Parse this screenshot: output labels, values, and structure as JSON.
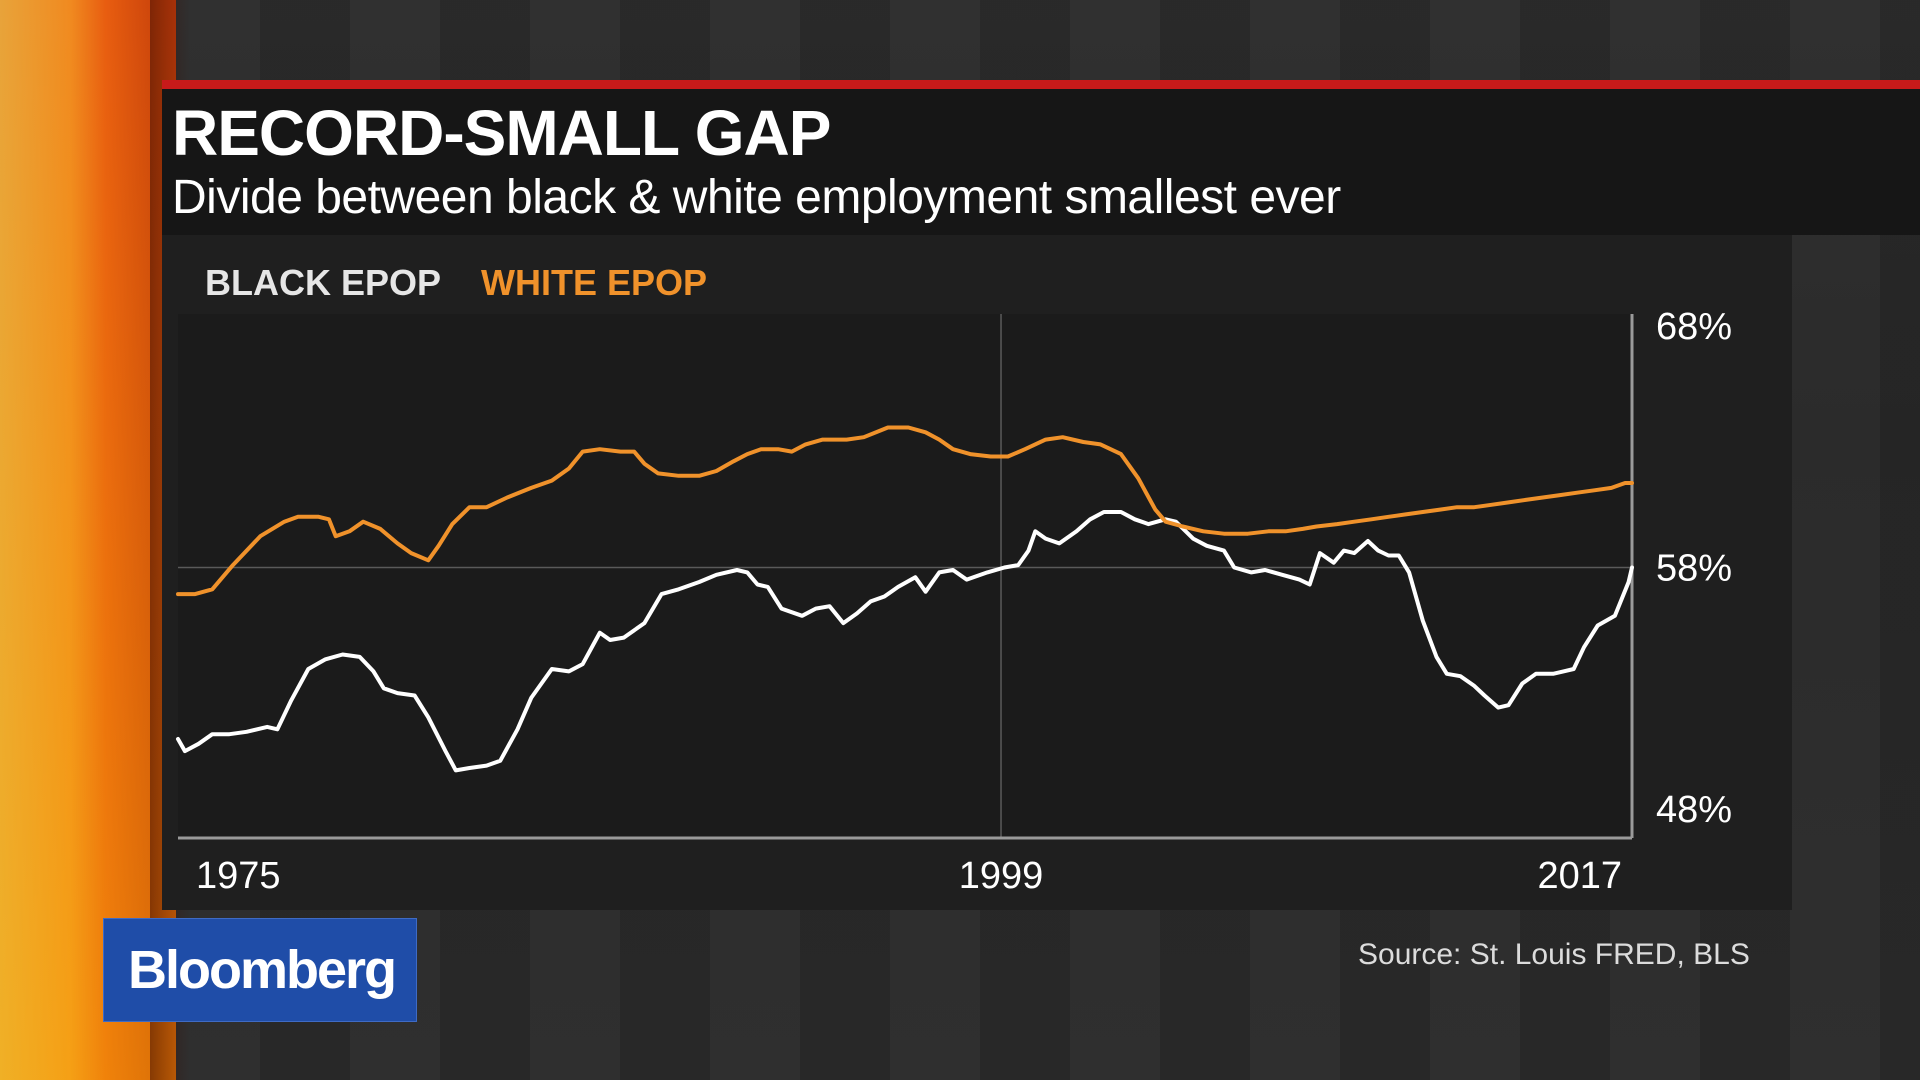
{
  "title": "RECORD-SMALL GAP",
  "subtitle": "Divide between black & white employment smallest ever",
  "source": "Source: St. Louis FRED, BLS",
  "logo": "Bloomberg",
  "colors": {
    "accent_red": "#c81a1a",
    "black_series": "#ffffff",
    "white_series": "#f0922b",
    "logo_bg": "#1f4da8"
  },
  "chart_data": {
    "type": "line",
    "title": "RECORD-SMALL GAP",
    "subtitle": "Divide between black & white employment smallest ever",
    "x_ticks": [
      "1975",
      "1999",
      "2017"
    ],
    "y_ticks": [
      "68%",
      "58%",
      "48%"
    ],
    "xlim": [
      1975,
      2017.4
    ],
    "ylim": [
      46.8,
      68.5
    ],
    "y_axis_position": "right",
    "grid": "x at 1999, y at 58%",
    "legend": {
      "placement": "top-left"
    },
    "series": [
      {
        "name": "BLACK EPOP",
        "color": "#ffffff",
        "points": [
          [
            1975.0,
            50.9
          ],
          [
            1975.2,
            50.4
          ],
          [
            1975.6,
            50.7
          ],
          [
            1976.0,
            51.1
          ],
          [
            1976.5,
            51.1
          ],
          [
            1977.0,
            51.2
          ],
          [
            1977.6,
            51.4
          ],
          [
            1977.9,
            51.3
          ],
          [
            1978.3,
            52.5
          ],
          [
            1978.8,
            53.8
          ],
          [
            1979.3,
            54.2
          ],
          [
            1979.8,
            54.4
          ],
          [
            1980.3,
            54.3
          ],
          [
            1980.7,
            53.7
          ],
          [
            1981.0,
            53.0
          ],
          [
            1981.4,
            52.8
          ],
          [
            1981.9,
            52.7
          ],
          [
            1982.3,
            51.8
          ],
          [
            1982.8,
            50.4
          ],
          [
            1983.1,
            49.6
          ],
          [
            1983.5,
            49.7
          ],
          [
            1984.0,
            49.8
          ],
          [
            1984.4,
            50.0
          ],
          [
            1984.9,
            51.3
          ],
          [
            1985.3,
            52.6
          ],
          [
            1985.9,
            53.8
          ],
          [
            1986.4,
            53.7
          ],
          [
            1986.8,
            54.0
          ],
          [
            1987.3,
            55.3
          ],
          [
            1987.6,
            55.0
          ],
          [
            1988.0,
            55.1
          ],
          [
            1988.6,
            55.7
          ],
          [
            1989.1,
            56.9
          ],
          [
            1989.6,
            57.1
          ],
          [
            1990.2,
            57.4
          ],
          [
            1990.7,
            57.7
          ],
          [
            1991.3,
            57.9
          ],
          [
            1991.6,
            57.8
          ],
          [
            1991.9,
            57.3
          ],
          [
            1992.2,
            57.2
          ],
          [
            1992.6,
            56.3
          ],
          [
            1993.2,
            56.0
          ],
          [
            1993.6,
            56.3
          ],
          [
            1994.0,
            56.4
          ],
          [
            1994.4,
            55.7
          ],
          [
            1994.8,
            56.1
          ],
          [
            1995.2,
            56.6
          ],
          [
            1995.6,
            56.8
          ],
          [
            1996.0,
            57.2
          ],
          [
            1996.5,
            57.6
          ],
          [
            1996.8,
            57.0
          ],
          [
            1997.2,
            57.8
          ],
          [
            1997.6,
            57.9
          ],
          [
            1998.0,
            57.5
          ],
          [
            1998.6,
            57.8
          ],
          [
            1999.1,
            58.0
          ],
          [
            1999.5,
            58.1
          ],
          [
            1999.8,
            58.7
          ],
          [
            2000.0,
            59.5
          ],
          [
            2000.3,
            59.2
          ],
          [
            2000.7,
            59.0
          ],
          [
            2001.2,
            59.5
          ],
          [
            2001.6,
            60.0
          ],
          [
            2002.0,
            60.3
          ],
          [
            2002.5,
            60.3
          ],
          [
            2002.9,
            60.0
          ],
          [
            2003.3,
            59.8
          ],
          [
            2003.8,
            60.0
          ],
          [
            2004.1,
            59.9
          ],
          [
            2004.6,
            59.2
          ],
          [
            2005.0,
            58.9
          ],
          [
            2005.5,
            58.7
          ],
          [
            2005.8,
            58.0
          ],
          [
            2006.3,
            57.8
          ],
          [
            2006.7,
            57.9
          ],
          [
            2007.2,
            57.7
          ],
          [
            2007.7,
            57.5
          ],
          [
            2008.0,
            57.3
          ],
          [
            2008.3,
            58.6
          ],
          [
            2008.7,
            58.2
          ],
          [
            2009.0,
            58.7
          ],
          [
            2009.3,
            58.6
          ],
          [
            2009.7,
            59.1
          ],
          [
            2010.0,
            58.7
          ],
          [
            2010.3,
            58.5
          ],
          [
            2010.6,
            58.5
          ],
          [
            2010.9,
            57.8
          ],
          [
            2011.3,
            55.8
          ],
          [
            2011.7,
            54.3
          ],
          [
            2012.0,
            53.6
          ],
          [
            2012.4,
            53.5
          ],
          [
            2012.8,
            53.1
          ],
          [
            2013.1,
            52.7
          ],
          [
            2013.5,
            52.2
          ],
          [
            2013.8,
            52.3
          ],
          [
            2014.2,
            53.2
          ],
          [
            2014.6,
            53.6
          ],
          [
            2015.1,
            53.6
          ],
          [
            2015.4,
            53.7
          ],
          [
            2015.7,
            53.8
          ],
          [
            2016.0,
            54.7
          ],
          [
            2016.4,
            55.6
          ],
          [
            2016.9,
            56.0
          ],
          [
            2017.3,
            57.4
          ],
          [
            2017.4,
            58.0
          ]
        ]
      },
      {
        "name": "WHITE EPOP",
        "color": "#f0922b",
        "points": [
          [
            1975.0,
            56.9
          ],
          [
            1975.5,
            56.9
          ],
          [
            1976.0,
            57.1
          ],
          [
            1976.6,
            58.1
          ],
          [
            1977.4,
            59.3
          ],
          [
            1978.1,
            59.9
          ],
          [
            1978.5,
            60.1
          ],
          [
            1979.1,
            60.1
          ],
          [
            1979.4,
            60.0
          ],
          [
            1979.6,
            59.3
          ],
          [
            1980.0,
            59.5
          ],
          [
            1980.4,
            59.9
          ],
          [
            1980.9,
            59.6
          ],
          [
            1981.4,
            59.0
          ],
          [
            1981.8,
            58.6
          ],
          [
            1982.3,
            58.3
          ],
          [
            1982.6,
            58.9
          ],
          [
            1983.0,
            59.8
          ],
          [
            1983.5,
            60.5
          ],
          [
            1984.0,
            60.5
          ],
          [
            1984.6,
            60.9
          ],
          [
            1985.3,
            61.3
          ],
          [
            1985.9,
            61.6
          ],
          [
            1986.4,
            62.1
          ],
          [
            1986.8,
            62.8
          ],
          [
            1987.3,
            62.9
          ],
          [
            1987.9,
            62.8
          ],
          [
            1988.3,
            62.8
          ],
          [
            1988.6,
            62.3
          ],
          [
            1989.0,
            61.9
          ],
          [
            1989.6,
            61.8
          ],
          [
            1990.2,
            61.8
          ],
          [
            1990.7,
            62.0
          ],
          [
            1991.2,
            62.4
          ],
          [
            1991.6,
            62.7
          ],
          [
            1992.0,
            62.9
          ],
          [
            1992.5,
            62.9
          ],
          [
            1992.9,
            62.8
          ],
          [
            1993.3,
            63.1
          ],
          [
            1993.8,
            63.3
          ],
          [
            1994.5,
            63.3
          ],
          [
            1995.0,
            63.4
          ],
          [
            1995.7,
            63.8
          ],
          [
            1996.3,
            63.8
          ],
          [
            1996.8,
            63.6
          ],
          [
            1997.2,
            63.3
          ],
          [
            1997.6,
            62.9
          ],
          [
            1998.1,
            62.7
          ],
          [
            1998.7,
            62.6
          ],
          [
            1999.2,
            62.6
          ],
          [
            1999.7,
            62.9
          ],
          [
            2000.3,
            63.3
          ],
          [
            2000.8,
            63.4
          ],
          [
            2001.4,
            63.2
          ],
          [
            2001.9,
            63.1
          ],
          [
            2002.5,
            62.7
          ],
          [
            2003.0,
            61.7
          ],
          [
            2003.5,
            60.4
          ],
          [
            2003.8,
            59.9
          ],
          [
            2004.3,
            59.7
          ],
          [
            2004.9,
            59.5
          ],
          [
            2005.5,
            59.4
          ],
          [
            2006.2,
            59.4
          ],
          [
            2006.8,
            59.5
          ],
          [
            2007.3,
            59.5
          ],
          [
            2007.8,
            59.6
          ],
          [
            2008.2,
            59.7
          ],
          [
            2008.8,
            59.8
          ],
          [
            2009.3,
            59.9
          ],
          [
            2009.8,
            60.0
          ],
          [
            2010.3,
            60.1
          ],
          [
            2010.8,
            60.2
          ],
          [
            2011.3,
            60.3
          ],
          [
            2011.8,
            60.4
          ],
          [
            2012.3,
            60.5
          ],
          [
            2012.8,
            60.5
          ],
          [
            2013.3,
            60.6
          ],
          [
            2013.8,
            60.7
          ],
          [
            2014.3,
            60.8
          ],
          [
            2014.8,
            60.9
          ],
          [
            2015.3,
            61.0
          ],
          [
            2015.8,
            61.1
          ],
          [
            2016.3,
            61.2
          ],
          [
            2016.8,
            61.3
          ],
          [
            2017.2,
            61.5
          ],
          [
            2017.4,
            61.5
          ]
        ]
      }
    ]
  }
}
